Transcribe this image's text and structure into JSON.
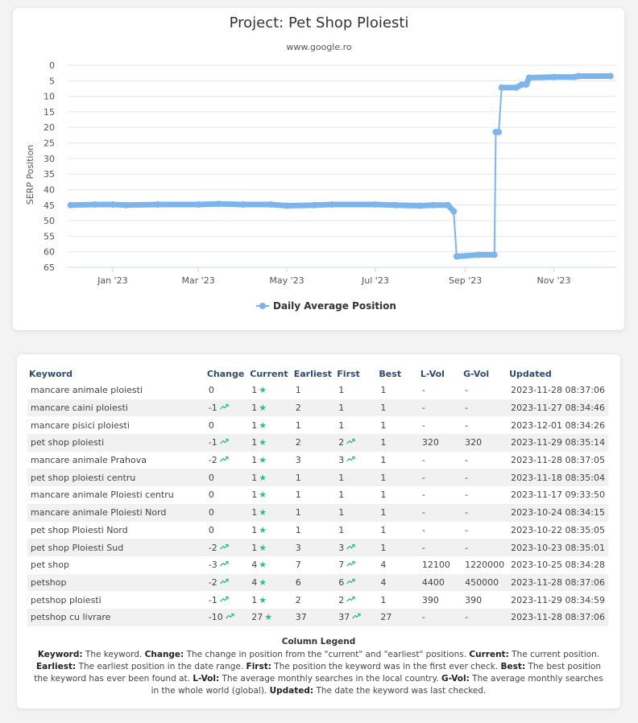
{
  "chart_data": {
    "type": "line",
    "title": "Project: Pet Shop Ploiesti",
    "subtitle": "www.google.ro",
    "ylabel": "SERP Position",
    "ylim": [
      0,
      65
    ],
    "y_reversed": true,
    "yticks": [
      0,
      5,
      10,
      15,
      20,
      25,
      30,
      35,
      40,
      45,
      50,
      55,
      60,
      65
    ],
    "xticks": [
      "Jan '23",
      "Mar '23",
      "May '23",
      "Jul '23",
      "Sep '23",
      "Nov '23"
    ],
    "xtick_dates": [
      "2023-01-01",
      "2023-03-01",
      "2023-05-01",
      "2023-07-01",
      "2023-09-01",
      "2023-11-01"
    ],
    "xlim": [
      "2022-12-01",
      "2023-12-14"
    ],
    "legend_position": "bottom",
    "series_color": "#7cb5ec",
    "series": [
      {
        "name": "Daily Average Position",
        "points": [
          [
            "2022-12-03",
            45
          ],
          [
            "2022-12-20",
            44.8
          ],
          [
            "2023-01-01",
            44.8
          ],
          [
            "2023-01-10",
            45
          ],
          [
            "2023-02-01",
            44.8
          ],
          [
            "2023-03-01",
            44.8
          ],
          [
            "2023-03-15",
            44.6
          ],
          [
            "2023-04-01",
            44.8
          ],
          [
            "2023-04-20",
            44.8
          ],
          [
            "2023-05-01",
            45.2
          ],
          [
            "2023-05-20",
            45
          ],
          [
            "2023-06-01",
            44.8
          ],
          [
            "2023-07-01",
            44.8
          ],
          [
            "2023-07-15",
            45
          ],
          [
            "2023-08-01",
            45.2
          ],
          [
            "2023-08-10",
            45
          ],
          [
            "2023-08-20",
            45
          ],
          [
            "2023-08-24",
            47
          ],
          [
            "2023-08-26",
            61.5
          ],
          [
            "2023-09-10",
            61
          ],
          [
            "2023-09-21",
            61
          ],
          [
            "2023-09-22",
            21.5
          ],
          [
            "2023-09-24",
            21.5
          ],
          [
            "2023-09-26",
            7.2
          ],
          [
            "2023-10-06",
            7.2
          ],
          [
            "2023-10-10",
            6.2
          ],
          [
            "2023-10-13",
            6.2
          ],
          [
            "2023-10-15",
            4
          ],
          [
            "2023-11-01",
            3.8
          ],
          [
            "2023-11-15",
            3.8
          ],
          [
            "2023-11-18",
            3.5
          ],
          [
            "2023-12-10",
            3.5
          ]
        ]
      }
    ]
  },
  "table": {
    "headers": [
      "Keyword",
      "Change",
      "Current",
      "Earliest",
      "First",
      "Best",
      "L-Vol",
      "G-Vol",
      "Updated"
    ],
    "rows": [
      {
        "keyword": "mancare animale ploiesti",
        "change": "0",
        "change_up": false,
        "current": "1",
        "earliest": "1",
        "first": "1",
        "first_up": false,
        "best": "1",
        "lvol": "-",
        "gvol": "-",
        "updated": "2023-11-28 08:37:06"
      },
      {
        "keyword": "mancare caini ploiesti",
        "change": "-1",
        "change_up": true,
        "current": "1",
        "earliest": "2",
        "first": "1",
        "first_up": false,
        "best": "1",
        "lvol": "-",
        "gvol": "-",
        "updated": "2023-11-27 08:34:46"
      },
      {
        "keyword": "mancare pisici ploiesti",
        "change": "0",
        "change_up": false,
        "current": "1",
        "earliest": "1",
        "first": "1",
        "first_up": false,
        "best": "1",
        "lvol": "-",
        "gvol": "-",
        "updated": "2023-12-01 08:34:26"
      },
      {
        "keyword": "pet shop ploiesti",
        "change": "-1",
        "change_up": true,
        "current": "1",
        "earliest": "2",
        "first": "2",
        "first_up": true,
        "best": "1",
        "lvol": "320",
        "gvol": "320",
        "updated": "2023-11-29 08:35:14"
      },
      {
        "keyword": "mancare animale Prahova",
        "change": "-2",
        "change_up": true,
        "current": "1",
        "earliest": "3",
        "first": "3",
        "first_up": true,
        "best": "1",
        "lvol": "-",
        "gvol": "-",
        "updated": "2023-11-28 08:37:05"
      },
      {
        "keyword": "pet shop ploiesti centru",
        "change": "0",
        "change_up": false,
        "current": "1",
        "earliest": "1",
        "first": "1",
        "first_up": false,
        "best": "1",
        "lvol": "-",
        "gvol": "-",
        "updated": "2023-11-18 08:35:04"
      },
      {
        "keyword": "mancare animale Ploiesti centru",
        "change": "0",
        "change_up": false,
        "current": "1",
        "earliest": "1",
        "first": "1",
        "first_up": false,
        "best": "1",
        "lvol": "-",
        "gvol": "-",
        "updated": "2023-11-17 09:33:50"
      },
      {
        "keyword": "mancare animale Ploiesti Nord",
        "change": "0",
        "change_up": false,
        "current": "1",
        "earliest": "1",
        "first": "1",
        "first_up": false,
        "best": "1",
        "lvol": "-",
        "gvol": "-",
        "updated": "2023-10-24 08:34:15"
      },
      {
        "keyword": "pet shop Ploiesti Nord",
        "change": "0",
        "change_up": false,
        "current": "1",
        "earliest": "1",
        "first": "1",
        "first_up": false,
        "best": "1",
        "lvol": "-",
        "gvol": "-",
        "updated": "2023-10-22 08:35:05"
      },
      {
        "keyword": "pet shop Ploiesti Sud",
        "change": "-2",
        "change_up": true,
        "current": "1",
        "earliest": "3",
        "first": "3",
        "first_up": true,
        "best": "1",
        "lvol": "-",
        "gvol": "-",
        "updated": "2023-10-23 08:35:01"
      },
      {
        "keyword": "pet shop",
        "change": "-3",
        "change_up": true,
        "current": "4",
        "earliest": "7",
        "first": "7",
        "first_up": true,
        "best": "4",
        "lvol": "12100",
        "gvol": "1220000",
        "updated": "2023-10-25 08:34:28"
      },
      {
        "keyword": "petshop",
        "change": "-2",
        "change_up": true,
        "current": "4",
        "earliest": "6",
        "first": "6",
        "first_up": true,
        "best": "4",
        "lvol": "4400",
        "gvol": "450000",
        "updated": "2023-11-28 08:37:06"
      },
      {
        "keyword": "petshop ploiesti",
        "change": "-1",
        "change_up": true,
        "current": "1",
        "earliest": "2",
        "first": "2",
        "first_up": true,
        "best": "1",
        "lvol": "390",
        "gvol": "390",
        "updated": "2023-11-29 08:34:59"
      },
      {
        "keyword": "petshop cu livrare",
        "change": "-10",
        "change_up": true,
        "current": "27",
        "earliest": "37",
        "first": "37",
        "first_up": true,
        "best": "27",
        "lvol": "-",
        "gvol": "-",
        "updated": "2023-11-28 08:37:06"
      }
    ]
  },
  "column_legend": {
    "title": "Column Legend",
    "items": [
      {
        "term": "Keyword:",
        "desc": "The keyword."
      },
      {
        "term": "Change:",
        "desc": "The change in position from the \"current\" and \"earliest\" positions."
      },
      {
        "term": "Current:",
        "desc": "The current position."
      },
      {
        "term": "Earliest:",
        "desc": "The earliest position in the date range."
      },
      {
        "term": "First:",
        "desc": "The position the keyword was in the first ever check."
      },
      {
        "term": "Best:",
        "desc": "The best position the keyword has ever been found at."
      },
      {
        "term": "L-Vol:",
        "desc": "The average monthly searches in the local country."
      },
      {
        "term": "G-Vol:",
        "desc": "The average monthly searches in the whole world (global)."
      },
      {
        "term": "Updated:",
        "desc": "The date the keyword was last checked."
      }
    ]
  },
  "colors": {
    "accent": "#7cb5ec",
    "star": "#2ec27e",
    "header_text": "#2f4a6b"
  },
  "icons": {
    "star": "star-icon",
    "trend": "trend-up-icon"
  }
}
